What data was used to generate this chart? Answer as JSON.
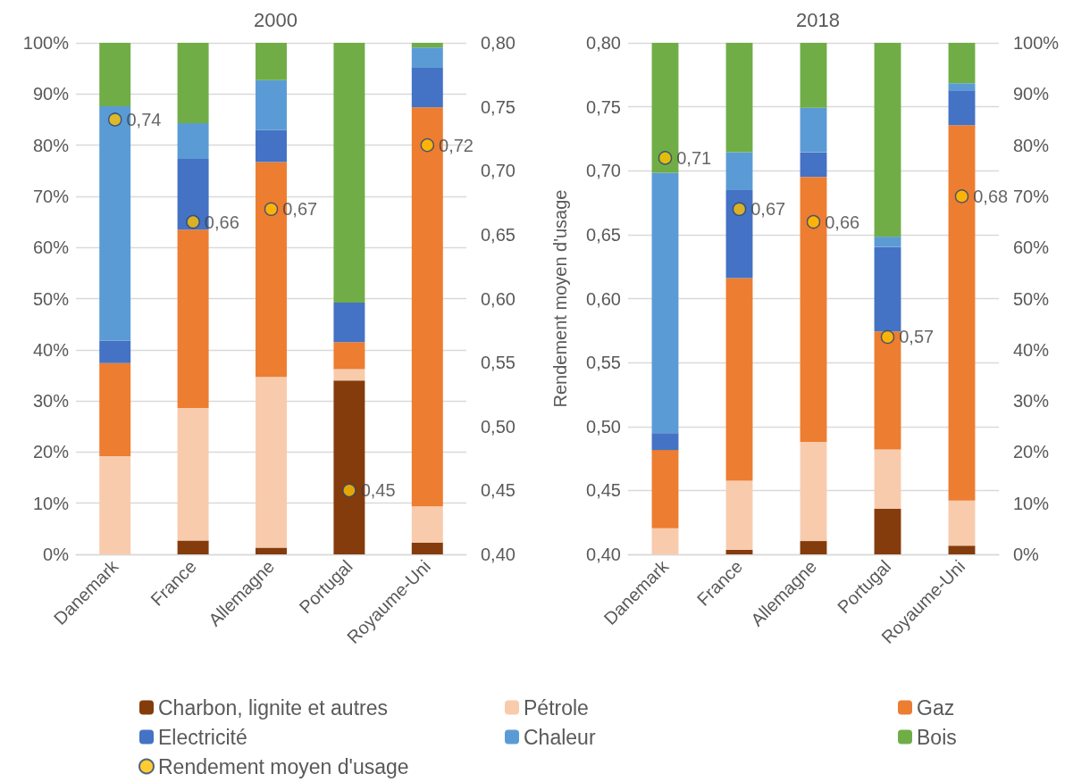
{
  "chart_data": [
    {
      "type": "bar",
      "title": "2000",
      "categories": [
        "Danemark",
        "France",
        "Allemagne",
        "Portugal",
        "Royaume-Uni"
      ],
      "stacked": true,
      "grid": "y",
      "legend": "bottom",
      "ylim": [
        0,
        100
      ],
      "yticks": [
        {
          "value": 0,
          "label": "0%"
        },
        {
          "value": 10,
          "label": "10%"
        },
        {
          "value": 20,
          "label": "20%"
        },
        {
          "value": 30,
          "label": "30%"
        },
        {
          "value": 40,
          "label": "40%"
        },
        {
          "value": 50,
          "label": "50%"
        },
        {
          "value": 60,
          "label": "60%"
        },
        {
          "value": 70,
          "label": "70%"
        },
        {
          "value": 80,
          "label": "80%"
        },
        {
          "value": 90,
          "label": "90%"
        },
        {
          "value": 100,
          "label": "100%"
        }
      ],
      "y2lim": [
        0.4,
        0.8
      ],
      "y2ticks": [
        {
          "value": 0.4,
          "label": "0,40"
        },
        {
          "value": 0.45,
          "label": "0,45"
        },
        {
          "value": 0.5,
          "label": "0,50"
        },
        {
          "value": 0.55,
          "label": "0,55"
        },
        {
          "value": 0.6,
          "label": "0,60"
        },
        {
          "value": 0.65,
          "label": "0,65"
        },
        {
          "value": 0.7,
          "label": "0,70"
        },
        {
          "value": 0.75,
          "label": "0,75"
        },
        {
          "value": 0.8,
          "label": "0,80"
        }
      ],
      "y2label": "Rendement moyen d'usage",
      "series": [
        {
          "name": "Charbon, lignite et autres",
          "color": "#843c0c",
          "values": [
            0,
            2.7,
            1.3,
            34.0,
            2.3
          ]
        },
        {
          "name": "Pétrole",
          "color": "#f8cbad",
          "values": [
            19.2,
            25.9,
            33.4,
            2.2,
            7.1
          ]
        },
        {
          "name": "Gaz",
          "color": "#ed7d31",
          "values": [
            18.2,
            34.9,
            42.0,
            5.3,
            78.0
          ]
        },
        {
          "name": "Electricité",
          "color": "#4472c4",
          "values": [
            4.4,
            13.8,
            6.3,
            7.7,
            7.7
          ]
        },
        {
          "name": "Chaleur",
          "color": "#5b9bd5",
          "values": [
            45.8,
            7.0,
            9.7,
            0,
            4.0
          ]
        },
        {
          "name": "Bois",
          "color": "#70ad47",
          "values": [
            12.4,
            15.7,
            7.3,
            50.8,
            0.9
          ]
        },
        {
          "name": "Rendement moyen d'usage",
          "type": "scatter",
          "axis": "y2",
          "marker": "circle",
          "color": "#ffc000",
          "values": [
            0.74,
            0.66,
            0.67,
            0.45,
            0.72
          ],
          "value_labels": [
            "0,74",
            "0,66",
            "0,67",
            "0,45",
            "0,72"
          ]
        }
      ]
    },
    {
      "type": "bar",
      "title": "2018",
      "categories": [
        "Danemark",
        "France",
        "Allemagne",
        "Portugal",
        "Royaume-Uni"
      ],
      "stacked": true,
      "grid": "y",
      "ylim": [
        0.4,
        0.8
      ],
      "yticks": [
        {
          "value": 0.4,
          "label": "0,40"
        },
        {
          "value": 0.45,
          "label": "0,45"
        },
        {
          "value": 0.5,
          "label": "0,50"
        },
        {
          "value": 0.55,
          "label": "0,55"
        },
        {
          "value": 0.6,
          "label": "0,60"
        },
        {
          "value": 0.65,
          "label": "0,65"
        },
        {
          "value": 0.7,
          "label": "0,70"
        },
        {
          "value": 0.75,
          "label": "0,75"
        },
        {
          "value": 0.8,
          "label": "0,80"
        }
      ],
      "y2lim": [
        0,
        100
      ],
      "y2ticks": [
        {
          "value": 0,
          "label": "0%"
        },
        {
          "value": 10,
          "label": "10%"
        },
        {
          "value": 20,
          "label": "20%"
        },
        {
          "value": 30,
          "label": "30%"
        },
        {
          "value": 40,
          "label": "40%"
        },
        {
          "value": 50,
          "label": "50%"
        },
        {
          "value": 60,
          "label": "60%"
        },
        {
          "value": 70,
          "label": "70%"
        },
        {
          "value": 80,
          "label": "80%"
        },
        {
          "value": 90,
          "label": "90%"
        },
        {
          "value": 100,
          "label": "100%"
        }
      ],
      "series": [
        {
          "axis": "y2",
          "color": "#843c0c",
          "values": [
            0,
            0.9,
            2.6,
            8.9,
            1.7
          ]
        },
        {
          "axis": "y2",
          "color": "#f8cbad",
          "values": [
            5.1,
            13.5,
            19.4,
            11.6,
            8.8
          ]
        },
        {
          "axis": "y2",
          "color": "#ed7d31",
          "values": [
            15.3,
            39.6,
            51.8,
            23.1,
            73.4
          ]
        },
        {
          "axis": "y2",
          "color": "#4472c4",
          "values": [
            3.3,
            17.2,
            4.8,
            16.5,
            6.8
          ]
        },
        {
          "axis": "y2",
          "color": "#5b9bd5",
          "values": [
            50.9,
            7.4,
            8.7,
            2.0,
            1.4
          ]
        },
        {
          "axis": "y2",
          "color": "#70ad47",
          "values": [
            25.4,
            21.4,
            12.7,
            37.9,
            7.9
          ]
        },
        {
          "type": "scatter",
          "marker": "circle",
          "color": "#ffc000",
          "values": [
            0.71,
            0.67,
            0.66,
            0.57,
            0.68
          ],
          "value_labels": [
            "0,71",
            "0,67",
            "0,66",
            "0,57",
            "0,68"
          ]
        }
      ]
    }
  ]
}
